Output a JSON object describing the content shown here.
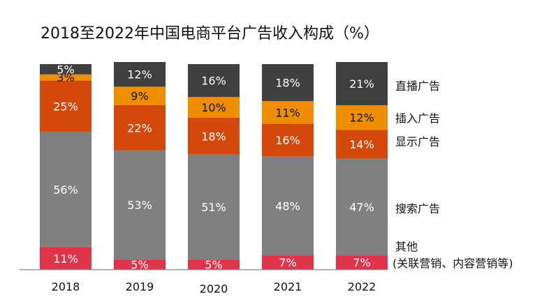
{
  "chart_data": {
    "type": "bar",
    "stacked": true,
    "title": "2018至2022年中国电商平台广告收入构成（%）",
    "categories": [
      "2018",
      "2019",
      "2020",
      "2021",
      "2022"
    ],
    "value_suffix": "%",
    "ylim": [
      0,
      100
    ],
    "grid": false,
    "legend_position": "right",
    "series": [
      {
        "name": "其他",
        "name_note": "(关联营销、内容营销等)",
        "color": "#e0344a",
        "label_color": "#ffffff",
        "values": [
          11,
          5,
          5,
          7,
          7
        ]
      },
      {
        "name": "搜索广告",
        "color": "#808080",
        "label_color": "#ffffff",
        "values": [
          56,
          53,
          51,
          48,
          47
        ]
      },
      {
        "name": "显示广告",
        "color": "#d4480a",
        "label_color": "#ffffff",
        "values": [
          25,
          22,
          18,
          16,
          14
        ]
      },
      {
        "name": "插入广告",
        "color": "#ee8e00",
        "label_color": "#111111",
        "values": [
          3,
          9,
          10,
          11,
          12
        ]
      },
      {
        "name": "直播广告",
        "color": "#3f3f3f",
        "label_color": "#ffffff",
        "values": [
          5,
          12,
          16,
          18,
          21
        ]
      }
    ]
  }
}
